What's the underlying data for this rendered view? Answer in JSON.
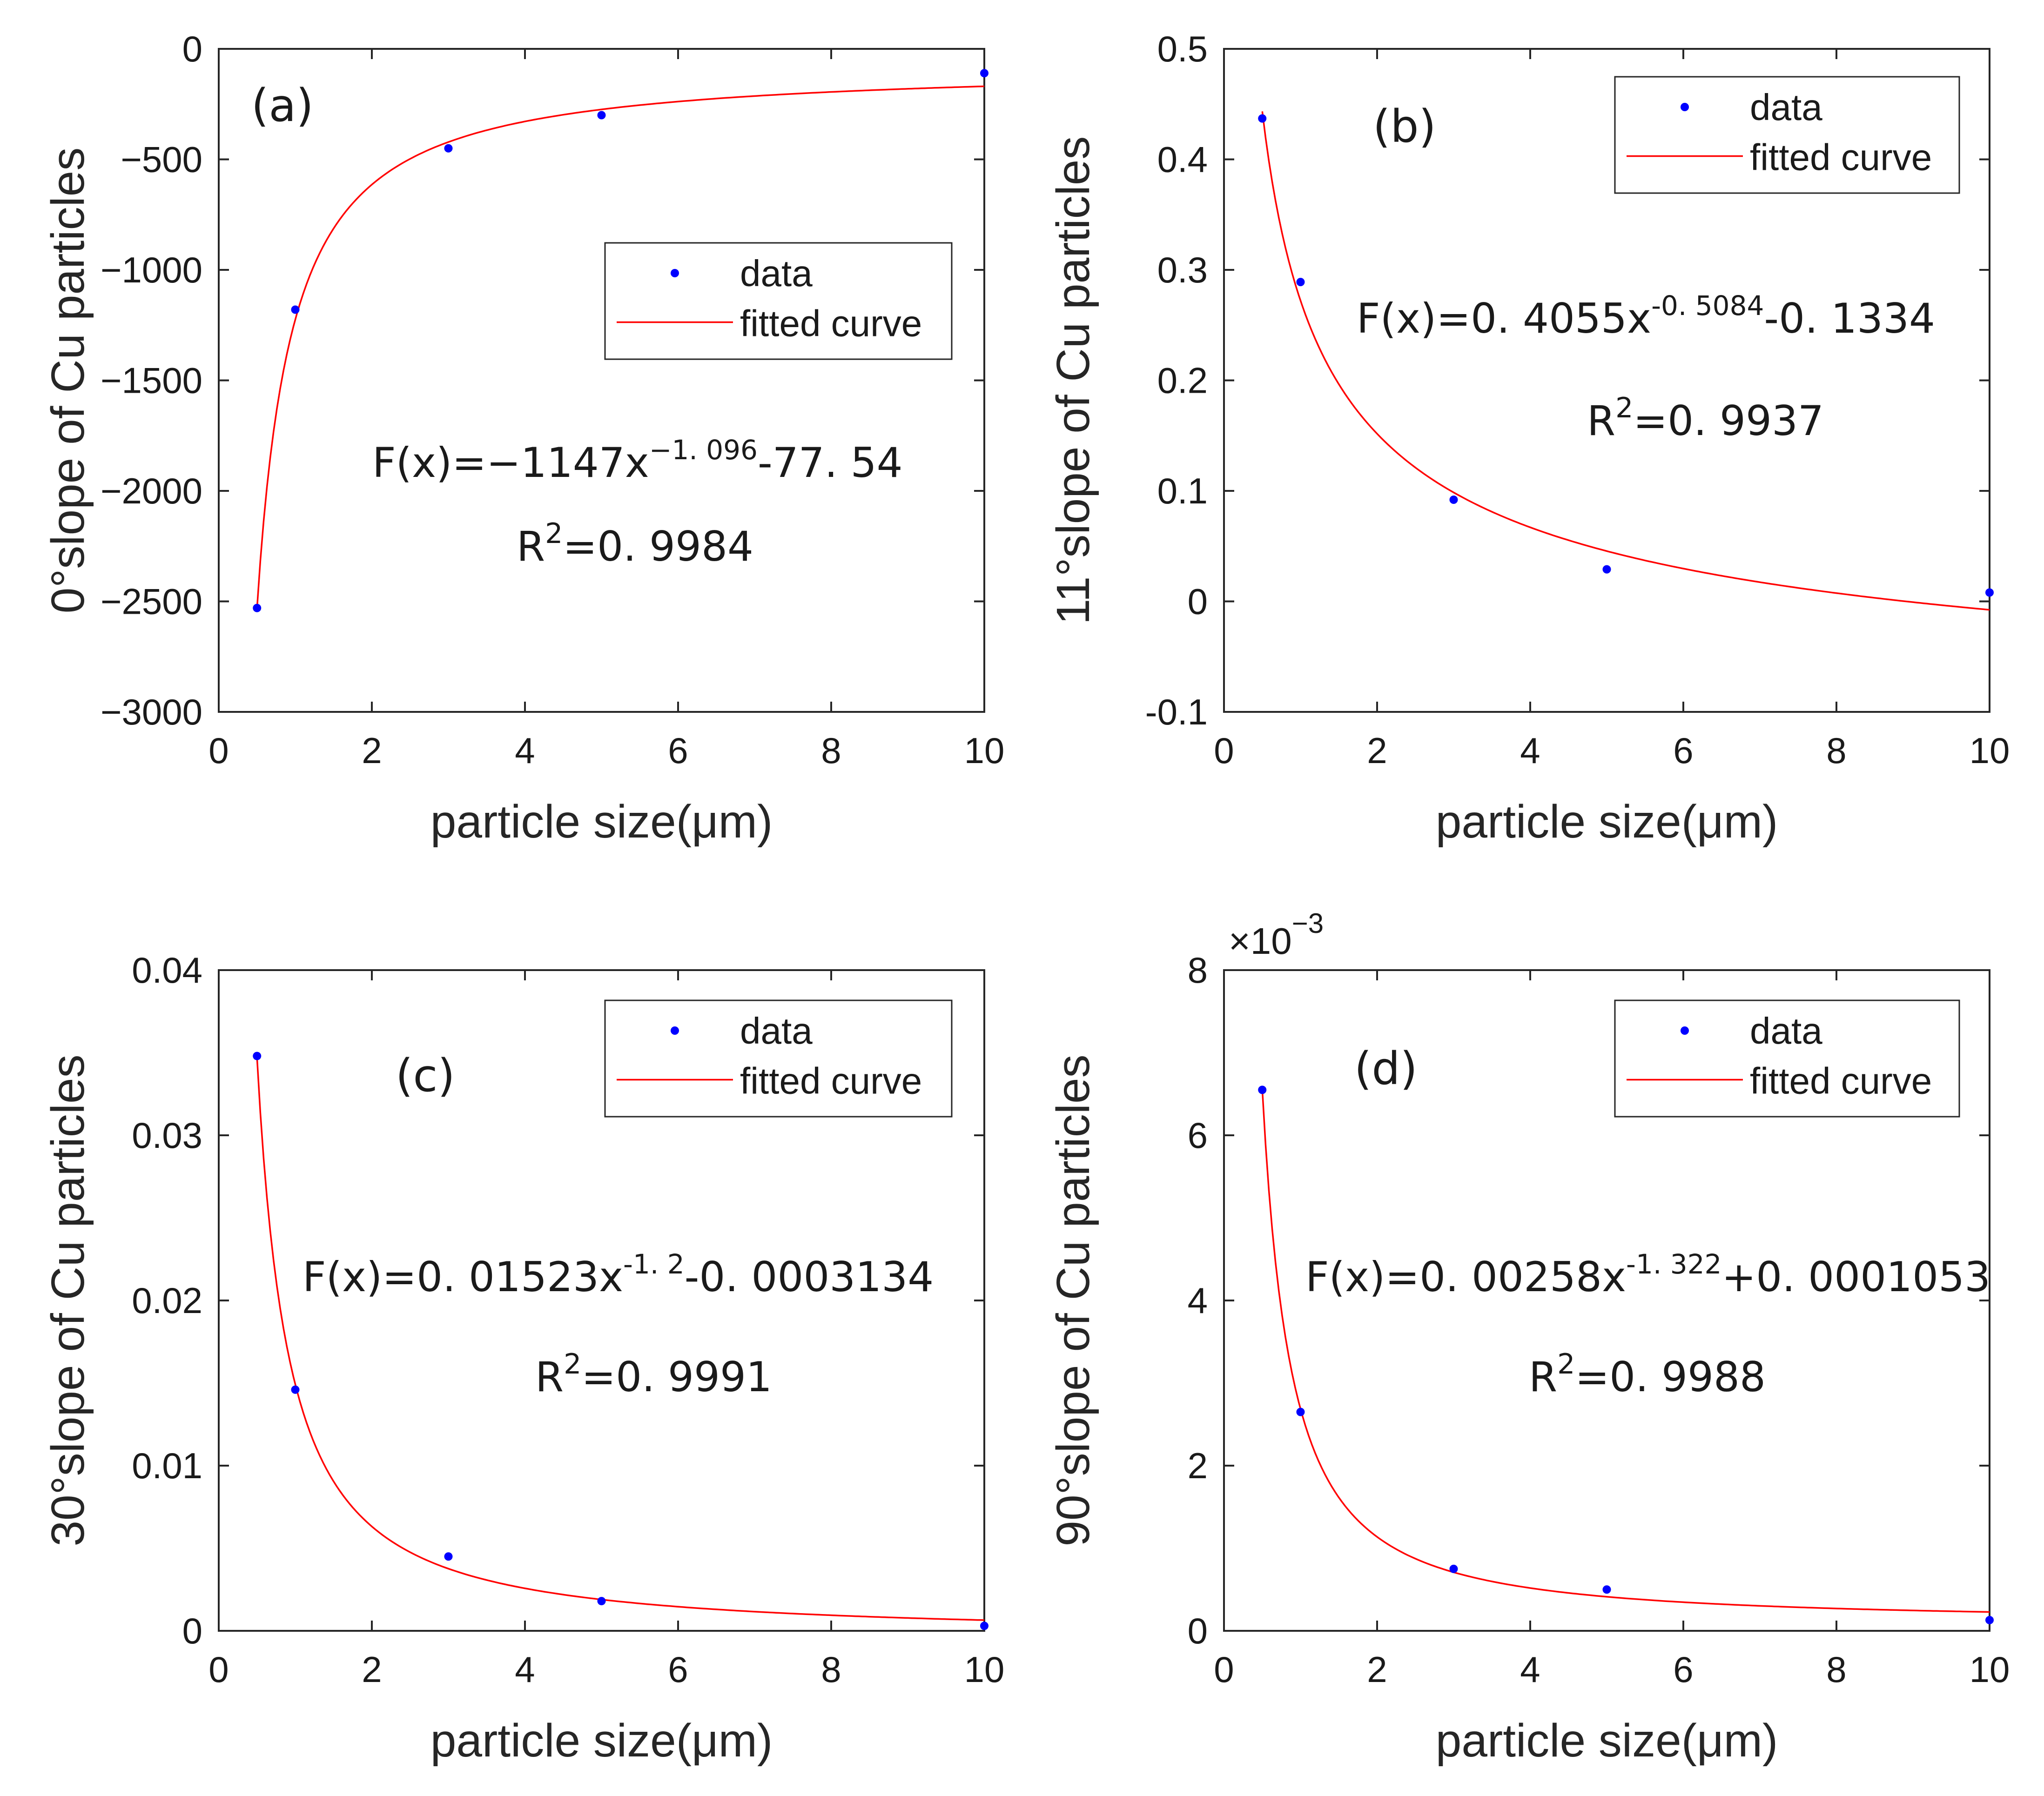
{
  "figure": {
    "layout": "2x2 grid"
  },
  "chart_data": [
    {
      "id": "a",
      "type": "scatter+line",
      "panel_label": "(a)",
      "xlabel": "particle size(μm)",
      "ylabel": "0°slope of Cu particles",
      "xlim": [
        0,
        10
      ],
      "ylim": [
        -3000,
        0
      ],
      "xticks": [
        0,
        2,
        4,
        6,
        8,
        10
      ],
      "xtick_labels": [
        "0",
        "2",
        "4",
        "6",
        "8",
        "10"
      ],
      "yticks": [
        0,
        -500,
        -1000,
        -1500,
        -2000,
        -2500,
        -3000
      ],
      "ytick_labels": [
        "0",
        "−500",
        "−1000",
        "−1500",
        "−2000",
        "−2500",
        "−3000"
      ],
      "y_exponent_label": "",
      "legend": {
        "position": "center-right",
        "data_label": "data",
        "fit_label": "fitted curve"
      },
      "series": [
        {
          "name": "data",
          "kind": "points",
          "color": "#0000ff",
          "x": [
            0.5,
            1,
            3,
            5,
            10
          ],
          "y": [
            -2530,
            -1180,
            -450,
            -300,
            -110
          ]
        },
        {
          "name": "fitted curve",
          "kind": "curve",
          "color": "#ff0000",
          "model": {
            "a": -1147,
            "b": -1.096,
            "c": -77.54,
            "scale": 1,
            "x_from": 0.5,
            "x_to": 10
          }
        }
      ],
      "annotations": {
        "equation": {
          "prefix": "F(x)=−1147x",
          "exponent": "−1. 096",
          "suffix": "-77. 54"
        },
        "r2": {
          "prefix": "R",
          "exponent": "2",
          "suffix": "=0. 9984"
        }
      }
    },
    {
      "id": "b",
      "type": "scatter+line",
      "panel_label": "(b)",
      "xlabel": "particle size(μm)",
      "ylabel": "11°slope of Cu particles",
      "xlim": [
        0,
        10
      ],
      "ylim": [
        -0.1,
        0.5
      ],
      "xticks": [
        0,
        2,
        4,
        6,
        8,
        10
      ],
      "xtick_labels": [
        "0",
        "2",
        "4",
        "6",
        "8",
        "10"
      ],
      "yticks": [
        0.5,
        0.4,
        0.3,
        0.2,
        0.1,
        0,
        -0.1
      ],
      "ytick_labels": [
        "0.5",
        "0.4",
        "0.3",
        "0.2",
        "0.1",
        "0",
        "-0.1"
      ],
      "y_exponent_label": "",
      "legend": {
        "position": "top-right",
        "data_label": "data",
        "fit_label": "fitted curve"
      },
      "series": [
        {
          "name": "data",
          "kind": "points",
          "color": "#0000ff",
          "x": [
            0.5,
            1,
            3,
            5,
            10
          ],
          "y": [
            0.437,
            0.289,
            0.092,
            0.029,
            0.008
          ]
        },
        {
          "name": "fitted curve",
          "kind": "curve",
          "color": "#ff0000",
          "model": {
            "a": 0.4055,
            "b": -0.5084,
            "c": -0.1334,
            "scale": 1,
            "x_from": 0.5,
            "x_to": 10
          }
        }
      ],
      "annotations": {
        "equation": {
          "prefix": "F(x)=0. 4055x",
          "exponent": "-0. 5084",
          "suffix": "-0. 1334"
        },
        "r2": {
          "prefix": "R",
          "exponent": "2",
          "suffix": "=0. 9937"
        }
      }
    },
    {
      "id": "c",
      "type": "scatter+line",
      "panel_label": "(c)",
      "xlabel": "particle size(μm)",
      "ylabel": "30°slope of Cu particles",
      "xlim": [
        0,
        10
      ],
      "ylim": [
        0,
        0.04
      ],
      "xticks": [
        0,
        2,
        4,
        6,
        8,
        10
      ],
      "xtick_labels": [
        "0",
        "2",
        "4",
        "6",
        "8",
        "10"
      ],
      "yticks": [
        0.04,
        0.03,
        0.02,
        0.01,
        0
      ],
      "ytick_labels": [
        "0.04",
        "0.03",
        "0.02",
        "0.01",
        "0"
      ],
      "y_exponent_label": "",
      "legend": {
        "position": "top-right",
        "data_label": "data",
        "fit_label": "fitted curve"
      },
      "series": [
        {
          "name": "data",
          "kind": "points",
          "color": "#0000ff",
          "x": [
            0.5,
            1,
            3,
            5,
            10
          ],
          "y": [
            0.0348,
            0.0146,
            0.0045,
            0.0018,
            0.0003
          ]
        },
        {
          "name": "fitted curve",
          "kind": "curve",
          "color": "#ff0000",
          "model": {
            "a": 0.01523,
            "b": -1.2,
            "c": -0.0003134,
            "scale": 1,
            "x_from": 0.5,
            "x_to": 10
          }
        }
      ],
      "annotations": {
        "equation": {
          "prefix": "F(x)=0. 01523x",
          "exponent": "-1. 2",
          "suffix": "-0. 0003134"
        },
        "r2": {
          "prefix": "R",
          "exponent": "2",
          "suffix": "=0. 9991"
        }
      }
    },
    {
      "id": "d",
      "type": "scatter+line",
      "panel_label": "(d)",
      "xlabel": "particle size(μm)",
      "ylabel": "90°slope of Cu particles",
      "xlim": [
        0,
        10
      ],
      "ylim": [
        0,
        8
      ],
      "xticks": [
        0,
        2,
        4,
        6,
        8,
        10
      ],
      "xtick_labels": [
        "0",
        "2",
        "4",
        "6",
        "8",
        "10"
      ],
      "yticks": [
        8,
        6,
        4,
        2,
        0
      ],
      "ytick_labels": [
        "8",
        "6",
        "4",
        "2",
        "0"
      ],
      "y_exponent_label": "×10",
      "y_exponent_power": "−3",
      "legend": {
        "position": "top-right",
        "data_label": "data",
        "fit_label": "fitted curve"
      },
      "series": [
        {
          "name": "data",
          "kind": "points",
          "color": "#0000ff",
          "x": [
            0.5,
            1,
            3,
            5,
            10
          ],
          "y": [
            6.55,
            2.65,
            0.75,
            0.5,
            0.13
          ]
        },
        {
          "name": "fitted curve",
          "kind": "curve",
          "color": "#ff0000",
          "model": {
            "a": 0.00258,
            "b": -1.322,
            "c": 0.0001053,
            "scale": 1000,
            "x_from": 0.5,
            "x_to": 10
          }
        }
      ],
      "annotations": {
        "equation": {
          "prefix": "F(x)=0. 00258x",
          "exponent": "-1. 322",
          "suffix": "+0. 0001053"
        },
        "r2": {
          "prefix": "R",
          "exponent": "2",
          "suffix": "=0. 9988"
        }
      }
    }
  ]
}
